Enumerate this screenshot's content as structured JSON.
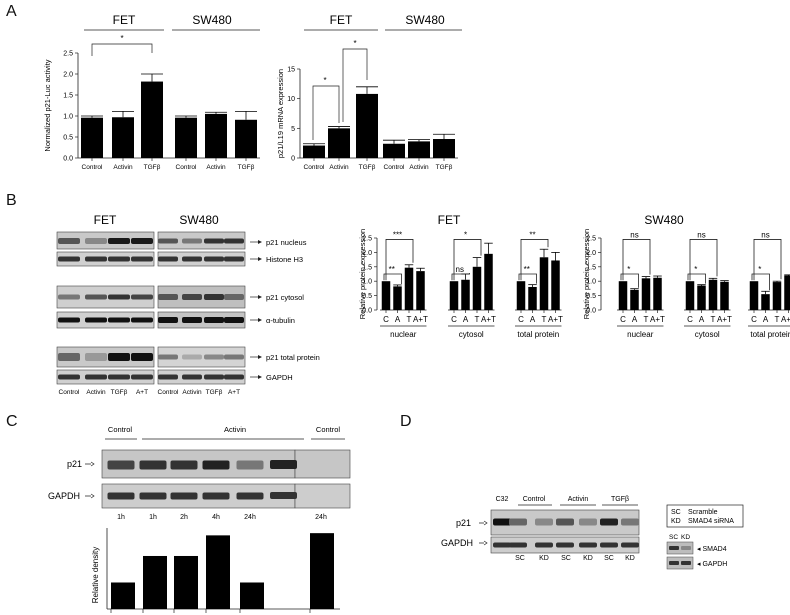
{
  "panels": {
    "A": "A",
    "B": "B",
    "C": "C",
    "D": "D"
  },
  "lines": {
    "fet": "FET",
    "sw480": "SW480"
  },
  "sig": {
    "star1": "*",
    "star2": "**",
    "star3": "***",
    "ns": "ns"
  },
  "blot_labels": {
    "p21_nucleus": "p21 nucleus",
    "histone": "Histone H3",
    "p21_cytosol": "p21 cytosol",
    "tubulin": "α-tubulin",
    "p21_total": "p21 total protein",
    "gapdh": "GAPDH",
    "p21": "p21",
    "sc": "SC",
    "kd": "KD",
    "c32": "C32",
    "smad4": "SMAD4"
  },
  "conditions": {
    "control": "Control",
    "activin": "Activin",
    "tgfb": "TGFβ",
    "at": "A+T"
  },
  "short": {
    "c": "C",
    "a": "A",
    "t": "T",
    "at": "A+T"
  },
  "groups": {
    "nuclear": "nuclear",
    "cytosol": "cytosol",
    "total": "total protein"
  },
  "legend": {
    "sc": "SC",
    "sc_desc": "Scramble",
    "kd": "KD",
    "kd_desc": "SMAD4 siRNA"
  },
  "timepoints": [
    "1h",
    "1h",
    "2h",
    "4h",
    "24h",
    "24h"
  ],
  "chart_data": [
    {
      "id": "A1",
      "type": "bar",
      "ylabel": "Normalized p21-Luc activity",
      "ylim": [
        0,
        2.5
      ],
      "yticks": [
        "0.0",
        "0.5",
        "1.0",
        "1.5",
        "2.0",
        "2.5"
      ],
      "tickvals": [
        0,
        0.5,
        1,
        1.5,
        2,
        2.5
      ],
      "categories": [
        "Control",
        "Activin",
        "TGFβ",
        "Control",
        "Activin",
        "TGFβ"
      ],
      "values": [
        0.96,
        0.97,
        1.82,
        0.96,
        1.05,
        0.91
      ],
      "errors": [
        0.04,
        0.14,
        0.18,
        0.04,
        0.04,
        0.2
      ]
    },
    {
      "id": "A2",
      "type": "bar",
      "ylabel": "p21/L19 mRNA expression",
      "ylim": [
        0,
        15
      ],
      "yticks": [
        "0",
        "5",
        "10",
        "15"
      ],
      "tickvals": [
        0,
        5,
        10,
        15
      ],
      "categories": [
        "Control",
        "Activin",
        "TGFβ",
        "Control",
        "Activin",
        "TGFβ"
      ],
      "values": [
        2.1,
        5.0,
        10.8,
        2.4,
        2.8,
        3.2
      ],
      "errors": [
        0.3,
        0.3,
        1.2,
        0.6,
        0.3,
        0.8
      ]
    },
    {
      "id": "B1",
      "type": "bar",
      "ylabel": "Relative protein expression",
      "ylim": [
        0,
        2.5
      ],
      "yticks": [
        "0.0",
        "0.5",
        "1.0",
        "1.5",
        "2.0",
        "2.5"
      ],
      "tickvals": [
        0,
        0.5,
        1,
        1.5,
        2,
        2.5
      ],
      "groups": [
        "nuclear",
        "cytosol",
        "total protein"
      ],
      "categories": [
        "C",
        "A",
        "T",
        "A+T"
      ],
      "values": [
        [
          1.0,
          0.82,
          1.47,
          1.35
        ],
        [
          1.0,
          1.05,
          1.5,
          1.95
        ],
        [
          1.0,
          0.8,
          1.83,
          1.72
        ]
      ],
      "errors": [
        [
          0.0,
          0.05,
          0.1,
          0.1
        ],
        [
          0.0,
          0.2,
          0.32,
          0.37
        ],
        [
          0.0,
          0.08,
          0.28,
          0.28
        ]
      ]
    },
    {
      "id": "B2",
      "type": "bar",
      "ylabel": "Relative protein expression",
      "ylim": [
        0,
        2.5
      ],
      "yticks": [
        "0.0",
        "0.5",
        "1.0",
        "1.5",
        "2.0",
        "2.5"
      ],
      "tickvals": [
        0,
        0.5,
        1,
        1.5,
        2,
        2.5
      ],
      "groups": [
        "nuclear",
        "cytosol",
        "total protein"
      ],
      "categories": [
        "C",
        "A",
        "T",
        "A+T"
      ],
      "values": [
        [
          1.0,
          0.7,
          1.1,
          1.12
        ],
        [
          1.0,
          0.85,
          1.05,
          0.98
        ],
        [
          1.0,
          0.55,
          0.97,
          1.2
        ]
      ],
      "errors": [
        [
          0.0,
          0.04,
          0.06,
          0.06
        ],
        [
          0.0,
          0.03,
          0.05,
          0.04
        ],
        [
          0.0,
          0.1,
          0.03,
          0.02
        ]
      ]
    },
    {
      "id": "C1",
      "type": "bar",
      "ylabel": "Relative density",
      "categories": [
        "1h",
        "1h",
        "2h",
        "4h",
        "24h",
        "24h"
      ],
      "values": [
        0.36,
        0.72,
        0.72,
        1.0,
        0.36,
        1.03
      ]
    }
  ]
}
